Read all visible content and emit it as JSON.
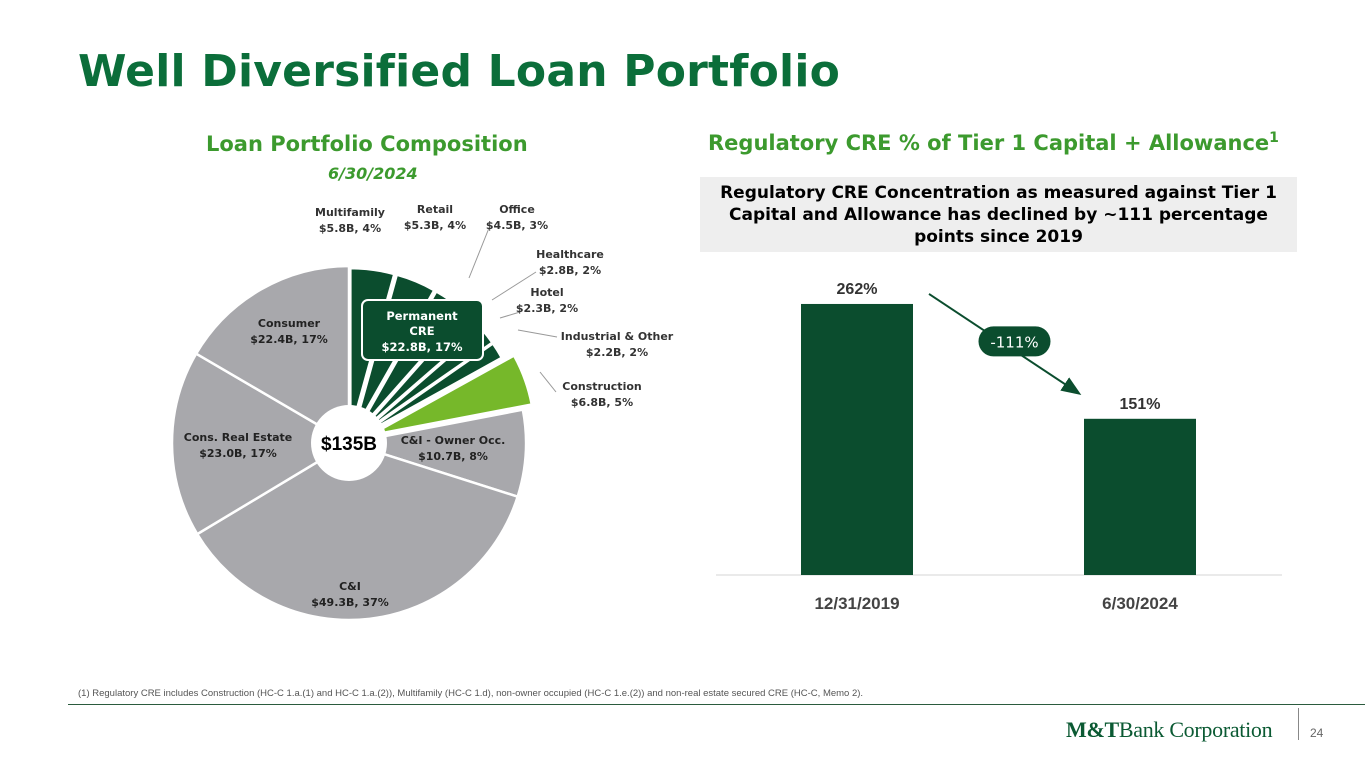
{
  "slide": {
    "title": "Well Diversified Loan Portfolio",
    "left_title": "Loan Portfolio Composition",
    "left_date": "6/30/2024",
    "right_title": "Regulatory CRE % of Tier 1 Capital + Allowance",
    "right_title_sup": "1",
    "callout": "Regulatory CRE Concentration as measured against Tier 1 Capital and Allowance has declined by ~111 percentage points since 2019",
    "footnote": "(1) Regulatory CRE includes Construction (HC-C 1.a.(1) and HC-C 1.a.(2)), Multifamily (HC-C 1.d), non-owner occupied (HC-C 1.e.(2)) and  non-real estate secured CRE (HC-C, Memo 2).",
    "logo_bold": "M&T",
    "logo_rest": "Bank Corporation",
    "page_number": "24"
  },
  "colors": {
    "title_green": "#0b6e3a",
    "section_green": "#3c9a2e",
    "dark_green": "#0b4d2e",
    "light_green": "#76b82a",
    "gray": "#a8a8ac"
  },
  "chart_data": [
    {
      "type": "pie",
      "center_label": "$135B",
      "group_label": {
        "line1": "Permanent",
        "line2": "CRE",
        "line3": "$22.8B, 17%"
      },
      "slices": [
        {
          "name": "Multifamily",
          "value_label": "$5.8B, 4%",
          "value": 5.8,
          "percent": 4,
          "group": "permanent",
          "color": "#0b4d2e"
        },
        {
          "name": "Retail",
          "value_label": "$5.3B, 4%",
          "value": 5.3,
          "percent": 4,
          "group": "permanent",
          "color": "#0b4d2e"
        },
        {
          "name": "Office",
          "value_label": "$4.5B, 3%",
          "value": 4.5,
          "percent": 3,
          "group": "permanent",
          "color": "#0b4d2e"
        },
        {
          "name": "Healthcare",
          "value_label": "$2.8B, 2%",
          "value": 2.8,
          "percent": 2,
          "group": "permanent",
          "color": "#0b4d2e"
        },
        {
          "name": "Hotel",
          "value_label": "$2.3B, 2%",
          "value": 2.3,
          "percent": 2,
          "group": "permanent",
          "color": "#0b4d2e"
        },
        {
          "name": "Industrial & Other",
          "value_label": "$2.2B, 2%",
          "value": 2.2,
          "percent": 2,
          "group": "permanent",
          "color": "#0b4d2e"
        },
        {
          "name": "Construction",
          "value_label": "$6.8B, 5%",
          "value": 6.8,
          "percent": 5,
          "group": "construction",
          "color": "#76b82a"
        },
        {
          "name": "C&I - Owner Occ.",
          "value_label": "$10.7B, 8%",
          "value": 10.7,
          "percent": 8,
          "group": "other",
          "color": "#a8a8ac"
        },
        {
          "name": "C&I",
          "value_label": "$49.3B, 37%",
          "value": 49.3,
          "percent": 37,
          "group": "other",
          "color": "#a8a8ac"
        },
        {
          "name": "Cons. Real Estate",
          "value_label": "$23.0B, 17%",
          "value": 23.0,
          "percent": 17,
          "group": "other",
          "color": "#a8a8ac"
        },
        {
          "name": "Consumer",
          "value_label": "$22.4B, 17%",
          "value": 22.4,
          "percent": 17,
          "group": "other",
          "color": "#a8a8ac"
        }
      ]
    },
    {
      "type": "bar",
      "categories": [
        "12/31/2019",
        "6/30/2024"
      ],
      "values": [
        262,
        151
      ],
      "value_labels": [
        "262%",
        "151%"
      ],
      "change_label": "-111%",
      "ylim": [
        0,
        290
      ],
      "grid": false,
      "color": "#0b4d2e"
    }
  ]
}
